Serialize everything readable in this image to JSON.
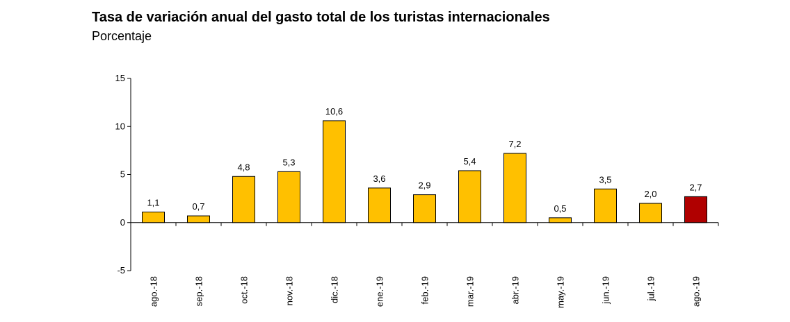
{
  "header": {
    "title": "Tasa de variación anual del gasto total de los turistas internacionales",
    "subtitle": "Porcentaje"
  },
  "chart_data": {
    "type": "bar",
    "title": "Tasa de variación anual del gasto total de los turistas internacionales",
    "subtitle": "Porcentaje",
    "xlabel": "",
    "ylabel": "",
    "categories": [
      "ago.-18",
      "sep.-18",
      "oct.-18",
      "nov.-18",
      "dic.-18",
      "ene.-19",
      "feb.-19",
      "mar.-19",
      "abr.-19",
      "may.-19",
      "jun.-19",
      "jul.-19",
      "ago.-19"
    ],
    "values": [
      1.1,
      0.7,
      4.8,
      5.3,
      10.6,
      3.6,
      2.9,
      5.4,
      7.2,
      0.5,
      3.5,
      2.0,
      2.7
    ],
    "data_labels": [
      "1,1",
      "0,7",
      "4,8",
      "5,3",
      "10,6",
      "3,6",
      "2,9",
      "5,4",
      "7,2",
      "0,5",
      "3,5",
      "2,0",
      "2,7"
    ],
    "ylim": [
      -5,
      15
    ],
    "yticks": [
      -5,
      0,
      5,
      10,
      15
    ],
    "ytick_labels": [
      "-5",
      "0",
      "5",
      "10",
      "15"
    ],
    "grid": false,
    "legend": "none",
    "colors": {
      "default": "#FFC000",
      "highlight": "#B00000",
      "border": "#000000"
    },
    "highlight_index": 12
  }
}
